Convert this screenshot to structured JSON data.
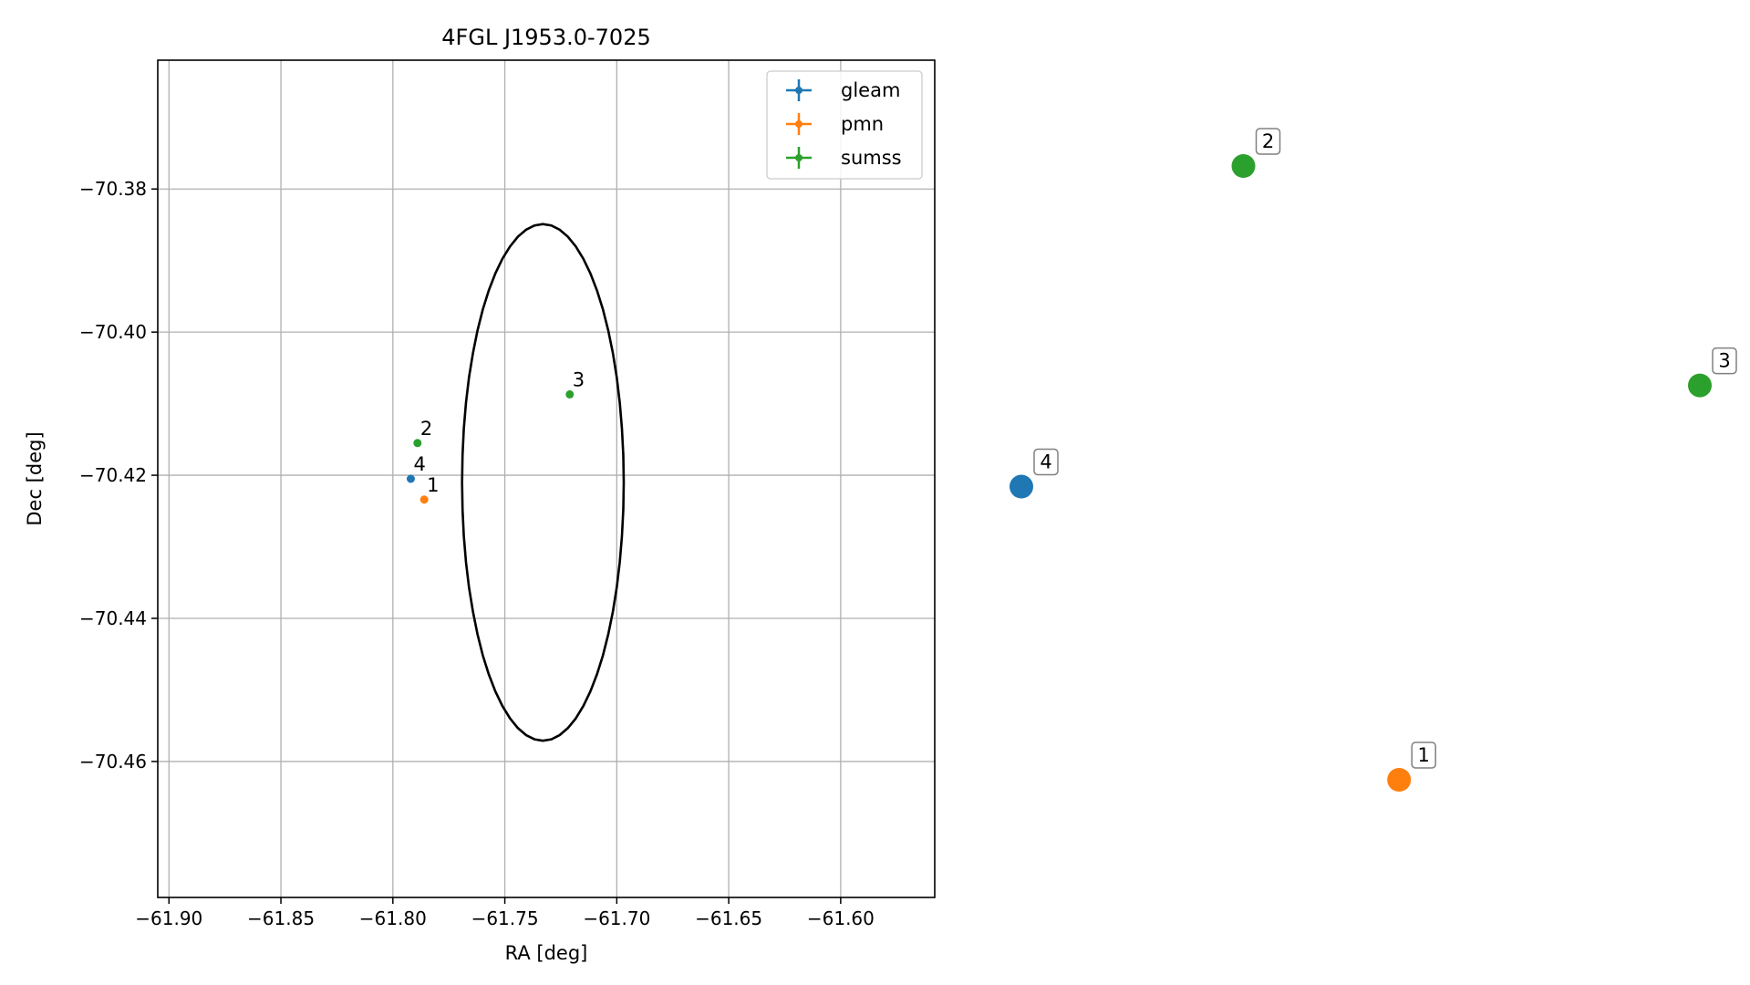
{
  "chart_data": {
    "type": "scatter",
    "title": "4FGL J1953.0-7025",
    "xlabel": "RA [deg]",
    "ylabel": "Dec [deg]",
    "xlim": [
      -61.905,
      -61.558
    ],
    "ylim": [
      -70.479,
      -70.362
    ],
    "xticks": [
      -61.9,
      -61.85,
      -61.8,
      -61.75,
      -61.7,
      -61.65,
      -61.6
    ],
    "xtick_labels": [
      "−61.90",
      "−61.85",
      "−61.80",
      "−61.75",
      "−61.70",
      "−61.65",
      "−61.60"
    ],
    "yticks": [
      -70.38,
      -70.4,
      -70.42,
      -70.44,
      -70.46
    ],
    "ytick_labels": [
      "−70.38",
      "−70.40",
      "−70.42",
      "−70.44",
      "−70.46"
    ],
    "grid": true,
    "legend_position": "top-right",
    "circle": {
      "center_ra": -61.733,
      "center_dec": -70.421,
      "radius_deg": 0.0361
    },
    "series": [
      {
        "name": "gleam",
        "color": "#1f77b4",
        "points": [
          {
            "id": "4",
            "ra": -61.792,
            "dec": -70.4205
          }
        ]
      },
      {
        "name": "pmn",
        "color": "#ff7f0e",
        "points": [
          {
            "id": "1",
            "ra": -61.786,
            "dec": -70.4234
          }
        ]
      },
      {
        "name": "sumss",
        "color": "#2ca02c",
        "points": [
          {
            "id": "2",
            "ra": -61.789,
            "dec": -70.4155
          },
          {
            "id": "3",
            "ra": -61.721,
            "dec": -70.4087
          }
        ]
      }
    ],
    "side_panel": {
      "type": "scatter",
      "axes_visible": false,
      "xlim": [
        0,
        1
      ],
      "ylim": [
        0,
        1
      ],
      "points": [
        {
          "id": "4",
          "series": "gleam",
          "x": 0.0,
          "y": 0.4777
        },
        {
          "id": "1",
          "series": "pmn",
          "x": 0.5567,
          "y": 0.0
        },
        {
          "id": "2",
          "series": "sumss",
          "x": 0.3273,
          "y": 1.0
        },
        {
          "id": "3",
          "series": "sumss",
          "x": 1.0,
          "y": 0.6425
        }
      ]
    }
  }
}
